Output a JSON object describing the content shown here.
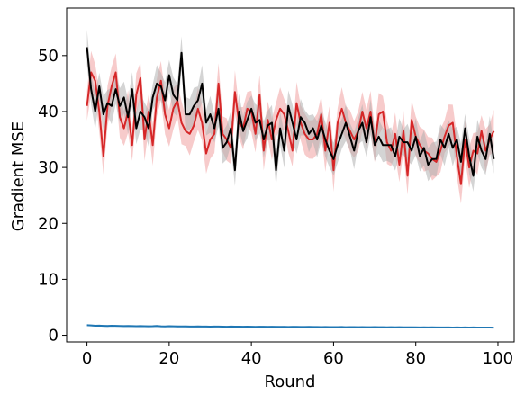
{
  "chart_data": {
    "type": "line",
    "title": "",
    "xlabel": "Round",
    "ylabel": "Gradient MSE",
    "xlim": [
      -4.95,
      103.95
    ],
    "ylim": [
      -1.2,
      58.5
    ],
    "xticks": [
      0,
      20,
      40,
      60,
      80,
      100
    ],
    "yticks": [
      0,
      10,
      20,
      30,
      40,
      50
    ],
    "xtick_labels": [
      "0",
      "20",
      "40",
      "60",
      "80",
      "100"
    ],
    "ytick_labels": [
      "0",
      "10",
      "20",
      "30",
      "40",
      "50"
    ],
    "grid": false,
    "legend": "none",
    "x": [
      0,
      1,
      2,
      3,
      4,
      5,
      6,
      7,
      8,
      9,
      10,
      11,
      12,
      13,
      14,
      15,
      16,
      17,
      18,
      19,
      20,
      21,
      22,
      23,
      24,
      25,
      26,
      27,
      28,
      29,
      30,
      31,
      32,
      33,
      34,
      35,
      36,
      37,
      38,
      39,
      40,
      41,
      42,
      43,
      44,
      45,
      46,
      47,
      48,
      49,
      50,
      51,
      52,
      53,
      54,
      55,
      56,
      57,
      58,
      59,
      60,
      61,
      62,
      63,
      64,
      65,
      66,
      67,
      68,
      69,
      70,
      71,
      72,
      73,
      74,
      75,
      76,
      77,
      78,
      79,
      80,
      81,
      82,
      83,
      84,
      85,
      86,
      87,
      88,
      89,
      90,
      91,
      92,
      93,
      94,
      95,
      96,
      97,
      98,
      99
    ],
    "series": [
      {
        "color": "#d62728",
        "band_color": "#f0a0a0",
        "values": [
          41,
          47,
          45.5,
          40,
          32,
          41,
          44.5,
          47,
          39,
          37,
          40,
          34,
          43,
          46,
          35,
          40,
          34,
          42.5,
          45.5,
          39.5,
          37,
          40.5,
          42,
          38,
          36.5,
          36,
          37.5,
          40.5,
          38,
          32.5,
          35,
          36,
          45,
          36,
          35,
          33.5,
          43.5,
          38,
          37,
          40.5,
          40,
          36,
          43,
          33,
          38.5,
          35,
          38.5,
          40.5,
          39.5,
          36.5,
          33,
          41.5,
          38,
          36,
          35,
          35,
          36,
          39.5,
          33,
          38,
          29.5,
          38,
          40.5,
          38,
          36.5,
          35,
          36.5,
          40,
          37,
          40,
          34,
          39.5,
          40,
          34.5,
          33,
          36,
          30.5,
          36.5,
          28.5,
          38.5,
          35.5,
          34,
          33,
          32.5,
          31.5,
          31,
          33,
          35.5,
          37.5,
          38,
          32,
          27,
          35,
          30,
          33,
          32.5,
          36.5,
          33,
          35,
          36.5
        ],
        "band_halfwidth": 3.5
      },
      {
        "color": "#000000",
        "band_color": "#b0b0b0",
        "values": [
          51.5,
          44,
          40,
          44.5,
          39.5,
          41.5,
          41,
          44,
          41,
          42.5,
          39,
          44,
          37,
          40,
          39,
          37,
          42.5,
          45,
          44.5,
          42,
          46.5,
          43,
          42,
          50.5,
          39.5,
          39.5,
          41,
          42,
          45,
          38,
          39.5,
          37,
          40.5,
          33.5,
          34.5,
          37,
          29.5,
          40,
          36.5,
          38.5,
          40.5,
          38,
          38.5,
          35,
          37.5,
          38,
          29.5,
          37,
          33,
          41,
          38,
          35,
          39,
          38,
          36,
          37,
          35,
          37.5,
          35,
          33,
          31.5,
          34,
          36,
          38,
          35.5,
          33,
          36.5,
          38,
          34.5,
          39,
          34,
          35.5,
          34,
          34,
          34,
          32,
          35.5,
          34.5,
          34.5,
          33,
          35.5,
          32,
          33.5,
          30.5,
          31.5,
          31.5,
          35,
          33.5,
          36,
          33.5,
          35,
          31,
          37,
          32,
          28.5,
          35.5,
          33,
          31.5,
          36,
          31.5
        ],
        "band_halfwidth": 3.0
      },
      {
        "color": "#1f77b4",
        "band_color": "#8fbfe0",
        "values": [
          1.8,
          1.75,
          1.7,
          1.72,
          1.68,
          1.65,
          1.7,
          1.68,
          1.66,
          1.64,
          1.65,
          1.63,
          1.62,
          1.64,
          1.62,
          1.6,
          1.62,
          1.66,
          1.6,
          1.58,
          1.62,
          1.6,
          1.58,
          1.57,
          1.58,
          1.56,
          1.55,
          1.57,
          1.56,
          1.55,
          1.54,
          1.56,
          1.55,
          1.53,
          1.52,
          1.55,
          1.54,
          1.53,
          1.52,
          1.53,
          1.52,
          1.5,
          1.52,
          1.51,
          1.5,
          1.51,
          1.5,
          1.49,
          1.5,
          1.48,
          1.5,
          1.49,
          1.48,
          1.47,
          1.49,
          1.47,
          1.48,
          1.46,
          1.47,
          1.46,
          1.46,
          1.45,
          1.47,
          1.44,
          1.46,
          1.45,
          1.44,
          1.45,
          1.44,
          1.43,
          1.45,
          1.43,
          1.44,
          1.42,
          1.43,
          1.42,
          1.43,
          1.41,
          1.42,
          1.41,
          1.42,
          1.4,
          1.41,
          1.4,
          1.41,
          1.39,
          1.4,
          1.39,
          1.4,
          1.38,
          1.4,
          1.38,
          1.39,
          1.38,
          1.39,
          1.37,
          1.38,
          1.37,
          1.38,
          1.36
        ],
        "band_halfwidth": 0.15
      }
    ]
  }
}
